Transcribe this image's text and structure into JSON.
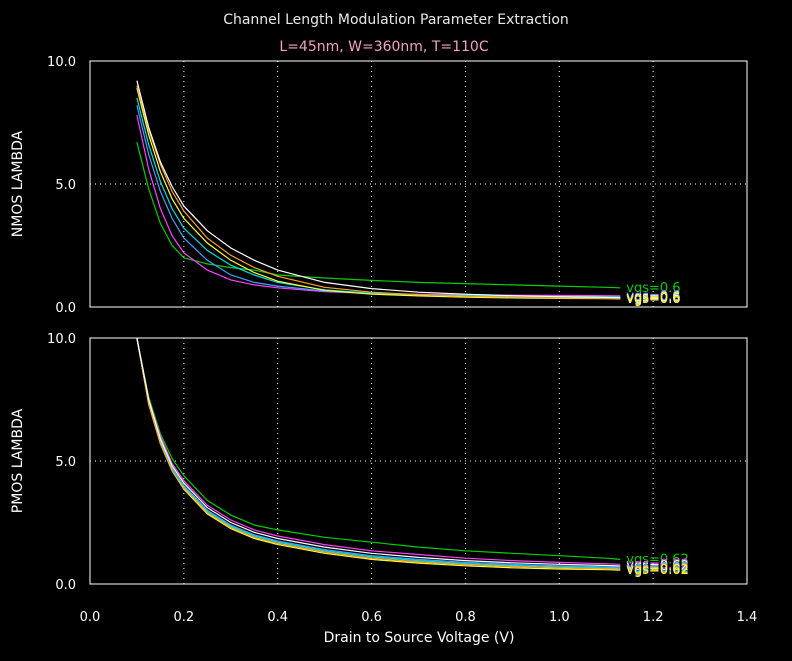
{
  "title": "Channel Length Modulation Parameter Extraction",
  "subtitle": "L=45nm, W=360nm, T=110C",
  "xlabel": "Drain to Source Voltage (V)",
  "x_ticks": [
    "0.0",
    "0.2",
    "0.4",
    "0.6",
    "0.8",
    "1.0",
    "1.2",
    "1.4"
  ],
  "colors": {
    "background": "#000000",
    "title": "#e8e8e8",
    "subtitle": "#f4a0c8",
    "series": [
      "#00d000",
      "#ff40ff",
      "#40a0ff",
      "#00e0e0",
      "#ffff30",
      "#ffa030",
      "#ffffff"
    ]
  },
  "chart_data": [
    {
      "type": "line",
      "ylabel": "NMOS LAMBDA",
      "xlim": [
        0,
        1.4
      ],
      "ylim": [
        0,
        10
      ],
      "y_ticks": [
        "0.0",
        "5.0",
        "10.0"
      ],
      "grid": true,
      "end_label_text": "vgs=0.6",
      "x": [
        0.1,
        0.125,
        0.15,
        0.175,
        0.2,
        0.25,
        0.3,
        0.35,
        0.4,
        0.5,
        0.6,
        0.7,
        0.8,
        0.9,
        1.0,
        1.1,
        1.13
      ],
      "series": [
        {
          "color_index": 0,
          "values": [
            6.7,
            4.8,
            3.4,
            2.5,
            2.0,
            1.75,
            1.6,
            1.5,
            1.3,
            1.18,
            1.08,
            1.0,
            0.95,
            0.9,
            0.85,
            0.8,
            0.78
          ]
        },
        {
          "color_index": 1,
          "values": [
            7.8,
            5.6,
            4.0,
            2.9,
            2.2,
            1.5,
            1.1,
            0.9,
            0.78,
            0.62,
            0.55,
            0.52,
            0.5,
            0.48,
            0.47,
            0.46,
            0.45
          ]
        },
        {
          "color_index": 2,
          "values": [
            8.2,
            6.2,
            4.7,
            3.6,
            2.8,
            1.9,
            1.3,
            1.0,
            0.85,
            0.65,
            0.55,
            0.5,
            0.47,
            0.45,
            0.43,
            0.42,
            0.42
          ]
        },
        {
          "color_index": 3,
          "values": [
            8.5,
            6.6,
            5.1,
            4.0,
            3.2,
            2.3,
            1.7,
            1.3,
            1.0,
            0.7,
            0.56,
            0.5,
            0.46,
            0.44,
            0.42,
            0.41,
            0.4
          ]
        },
        {
          "color_index": 4,
          "values": [
            8.9,
            7.0,
            5.5,
            4.4,
            3.6,
            2.6,
            1.9,
            1.4,
            1.05,
            0.68,
            0.52,
            0.45,
            0.4,
            0.37,
            0.35,
            0.34,
            0.33
          ]
        },
        {
          "color_index": 5,
          "values": [
            9.0,
            7.2,
            5.8,
            4.7,
            3.9,
            2.8,
            2.1,
            1.6,
            1.25,
            0.8,
            0.6,
            0.5,
            0.44,
            0.4,
            0.37,
            0.35,
            0.35
          ]
        },
        {
          "color_index": 6,
          "values": [
            9.2,
            7.3,
            5.9,
            4.9,
            4.1,
            3.1,
            2.4,
            1.9,
            1.5,
            1.0,
            0.75,
            0.6,
            0.52,
            0.46,
            0.42,
            0.39,
            0.38
          ]
        }
      ]
    },
    {
      "type": "line",
      "ylabel": "PMOS LAMBDA",
      "xlim": [
        0,
        1.4
      ],
      "ylim": [
        0,
        10
      ],
      "y_ticks": [
        "0.0",
        "5.0",
        "10.0"
      ],
      "grid": true,
      "end_label_text": "vgs=0.62",
      "x": [
        0.1,
        0.125,
        0.15,
        0.175,
        0.2,
        0.25,
        0.3,
        0.35,
        0.4,
        0.5,
        0.6,
        0.7,
        0.8,
        0.9,
        1.0,
        1.1,
        1.13
      ],
      "series": [
        {
          "color_index": 0,
          "values": [
            10.0,
            7.6,
            6.1,
            5.1,
            4.4,
            3.4,
            2.8,
            2.4,
            2.2,
            1.9,
            1.7,
            1.5,
            1.35,
            1.25,
            1.15,
            1.05,
            1.0
          ]
        },
        {
          "color_index": 1,
          "values": [
            10.0,
            7.5,
            6.0,
            4.9,
            4.2,
            3.2,
            2.6,
            2.2,
            1.95,
            1.6,
            1.35,
            1.2,
            1.05,
            0.95,
            0.88,
            0.82,
            0.8
          ]
        },
        {
          "color_index": 2,
          "values": [
            10.0,
            7.4,
            5.8,
            4.7,
            4.0,
            3.0,
            2.4,
            2.0,
            1.75,
            1.4,
            1.15,
            1.0,
            0.88,
            0.8,
            0.74,
            0.7,
            0.68
          ]
        },
        {
          "color_index": 3,
          "values": [
            10.0,
            7.4,
            5.8,
            4.7,
            3.95,
            2.95,
            2.35,
            1.95,
            1.7,
            1.35,
            1.1,
            0.95,
            0.83,
            0.75,
            0.7,
            0.66,
            0.64
          ]
        },
        {
          "color_index": 4,
          "values": [
            10.0,
            7.3,
            5.7,
            4.6,
            3.85,
            2.85,
            2.25,
            1.85,
            1.6,
            1.25,
            1.0,
            0.85,
            0.74,
            0.66,
            0.61,
            0.58,
            0.56
          ]
        },
        {
          "color_index": 5,
          "values": [
            10.0,
            7.3,
            5.7,
            4.6,
            3.9,
            2.9,
            2.3,
            1.9,
            1.65,
            1.3,
            1.05,
            0.9,
            0.79,
            0.71,
            0.66,
            0.62,
            0.6
          ]
        },
        {
          "color_index": 6,
          "values": [
            10.0,
            7.5,
            5.9,
            4.8,
            4.1,
            3.1,
            2.5,
            2.1,
            1.85,
            1.5,
            1.25,
            1.08,
            0.95,
            0.86,
            0.8,
            0.75,
            0.73
          ]
        }
      ]
    }
  ]
}
